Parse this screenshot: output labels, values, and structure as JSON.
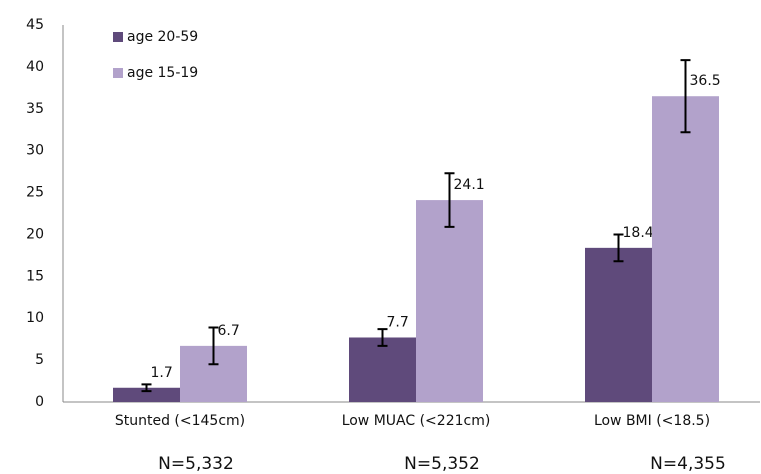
{
  "chart_data": {
    "type": "bar",
    "categories": [
      "Stunted (<145cm)",
      "Low MUAC (<221cm)",
      "Low BMI (<18.5)"
    ],
    "series": [
      {
        "name": "age 20-59",
        "color": "#5f4a7b",
        "values": [
          1.7,
          7.7,
          18.4
        ],
        "errors": [
          0.4,
          1.0,
          1.6
        ]
      },
      {
        "name": "age 15-19",
        "color": "#b2a2cb",
        "values": [
          6.7,
          24.1,
          36.5
        ],
        "errors": [
          2.2,
          3.2,
          4.3
        ]
      }
    ],
    "annotations": [
      "N=5,332",
      "N=5,352",
      "N=4,355"
    ],
    "ylim": [
      0,
      45
    ],
    "yticks": [
      0,
      5,
      10,
      15,
      20,
      25,
      30,
      35,
      40,
      45
    ],
    "grid": false,
    "legend": "top-left"
  }
}
